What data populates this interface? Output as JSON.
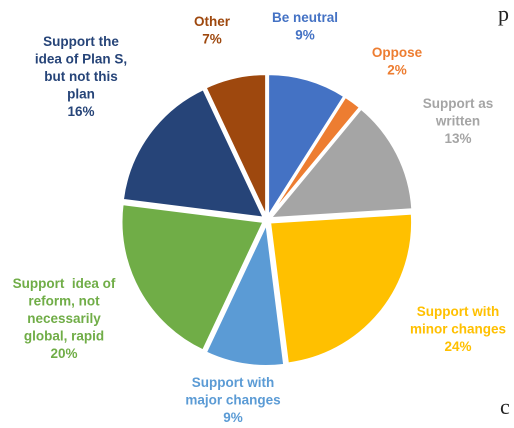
{
  "chart_data": {
    "type": "pie",
    "title": "",
    "slices": [
      {
        "label_lines": [
          "Be neutral"
        ],
        "percent_text": "9%",
        "value": 9,
        "color": "#4472c4"
      },
      {
        "label_lines": [
          "Oppose"
        ],
        "percent_text": "2%",
        "value": 2,
        "color": "#ed7d31"
      },
      {
        "label_lines": [
          "Support as",
          "written"
        ],
        "percent_text": "13%",
        "value": 13,
        "color": "#a5a5a5"
      },
      {
        "label_lines": [
          "Support with",
          "minor changes"
        ],
        "percent_text": "24%",
        "value": 24,
        "color": "#ffc000"
      },
      {
        "label_lines": [
          "Support with",
          "major changes"
        ],
        "percent_text": "9%",
        "value": 9,
        "color": "#5b9bd5"
      },
      {
        "label_lines": [
          "Support  idea of",
          "reform, not",
          "necessarily",
          "global, rapid"
        ],
        "percent_text": "20%",
        "value": 20,
        "color": "#70ad47"
      },
      {
        "label_lines": [
          "Support the",
          "idea of Plan S,",
          "but not this",
          "plan"
        ],
        "percent_text": "16%",
        "value": 16,
        "color": "#264478"
      },
      {
        "label_lines": [
          "Other"
        ],
        "percent_text": "7%",
        "value": 7,
        "color": "#9e480e"
      }
    ]
  },
  "edge_text": {
    "top_right": "p",
    "bottom_right": "c"
  }
}
